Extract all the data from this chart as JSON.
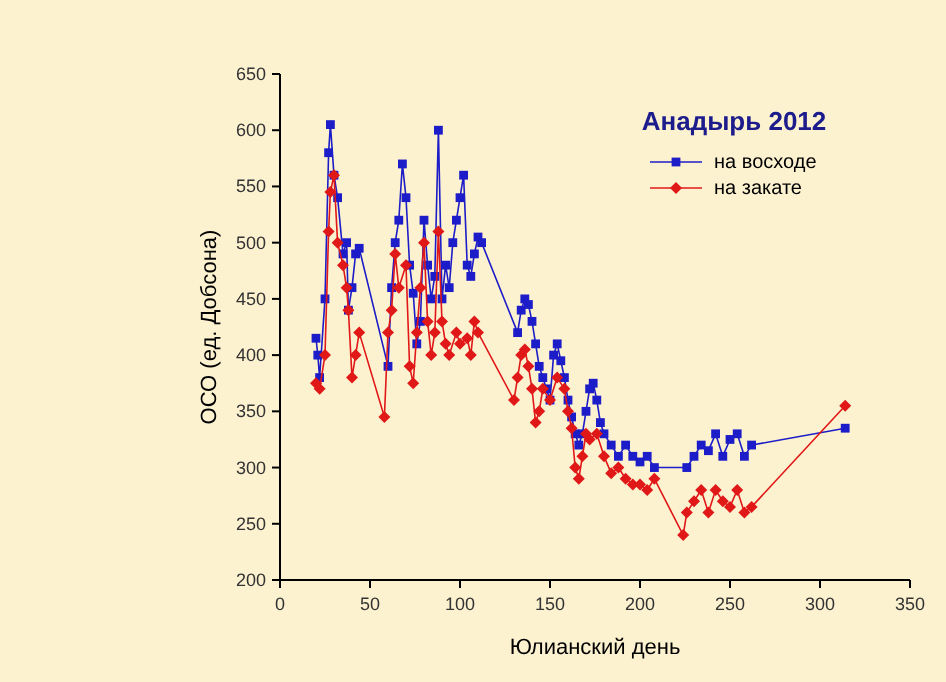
{
  "chart_data": {
    "type": "line",
    "title": "Анадырь 2012",
    "xlabel": "Юлианский день",
    "ylabel": "ОСО (ед. Добсона)",
    "xlim": [
      0,
      350
    ],
    "xticks": [
      0,
      50,
      100,
      150,
      200,
      250,
      300,
      350
    ],
    "ylim": [
      200,
      650
    ],
    "yticks": [
      200,
      250,
      300,
      350,
      400,
      450,
      500,
      550,
      600,
      650
    ],
    "grid": false,
    "legend": "top right",
    "line_style": "solid",
    "series": [
      {
        "name": "на восходе",
        "color": "#1c1cc8",
        "marker": "square",
        "x": [
          20,
          21,
          22,
          25,
          27,
          28,
          30,
          32,
          35,
          37,
          38,
          40,
          42,
          44,
          60,
          62,
          64,
          66,
          68,
          70,
          72,
          74,
          76,
          78,
          80,
          82,
          84,
          86,
          88,
          90,
          92,
          94,
          96,
          98,
          100,
          102,
          104,
          106,
          108,
          110,
          112,
          132,
          134,
          136,
          138,
          140,
          142,
          144,
          146,
          148,
          150,
          152,
          154,
          156,
          158,
          160,
          162,
          164,
          166,
          168,
          170,
          172,
          174,
          176,
          178,
          180,
          184,
          188,
          192,
          196,
          200,
          204,
          208,
          226,
          230,
          234,
          238,
          242,
          246,
          250,
          254,
          258,
          262,
          314
        ],
        "values": [
          415,
          400,
          380,
          450,
          580,
          605,
          560,
          540,
          490,
          500,
          440,
          460,
          490,
          495,
          390,
          460,
          500,
          520,
          570,
          540,
          480,
          455,
          410,
          430,
          520,
          480,
          450,
          470,
          600,
          450,
          480,
          460,
          500,
          520,
          540,
          560,
          480,
          470,
          490,
          505,
          500,
          420,
          440,
          450,
          445,
          430,
          410,
          390,
          380,
          370,
          360,
          400,
          410,
          395,
          380,
          360,
          345,
          330,
          320,
          330,
          350,
          370,
          375,
          360,
          340,
          330,
          320,
          310,
          320,
          310,
          305,
          310,
          300,
          300,
          310,
          320,
          315,
          330,
          310,
          325,
          330,
          310,
          320,
          335
        ]
      },
      {
        "name": "на закате",
        "color": "#e01818",
        "marker": "diamond",
        "x": [
          20,
          22,
          25,
          27,
          28,
          30,
          32,
          35,
          37,
          38,
          40,
          42,
          44,
          58,
          60,
          62,
          64,
          66,
          70,
          72,
          74,
          76,
          78,
          80,
          82,
          84,
          86,
          88,
          90,
          92,
          94,
          98,
          100,
          104,
          106,
          108,
          110,
          130,
          132,
          134,
          136,
          138,
          140,
          142,
          144,
          146,
          150,
          154,
          158,
          160,
          162,
          164,
          166,
          168,
          170,
          172,
          176,
          180,
          184,
          188,
          192,
          196,
          200,
          204,
          208,
          224,
          226,
          230,
          234,
          238,
          242,
          246,
          250,
          254,
          258,
          262,
          314
        ],
        "values": [
          375,
          370,
          400,
          510,
          545,
          560,
          500,
          480,
          460,
          440,
          380,
          400,
          420,
          345,
          420,
          440,
          490,
          460,
          480,
          390,
          375,
          420,
          460,
          500,
          430,
          400,
          420,
          510,
          430,
          410,
          400,
          420,
          410,
          415,
          400,
          430,
          420,
          360,
          380,
          400,
          405,
          390,
          370,
          340,
          350,
          370,
          360,
          380,
          370,
          350,
          335,
          300,
          290,
          310,
          330,
          325,
          330,
          310,
          295,
          300,
          290,
          285,
          285,
          280,
          290,
          240,
          260,
          270,
          280,
          260,
          280,
          270,
          265,
          280,
          260,
          265,
          355
        ]
      }
    ]
  }
}
